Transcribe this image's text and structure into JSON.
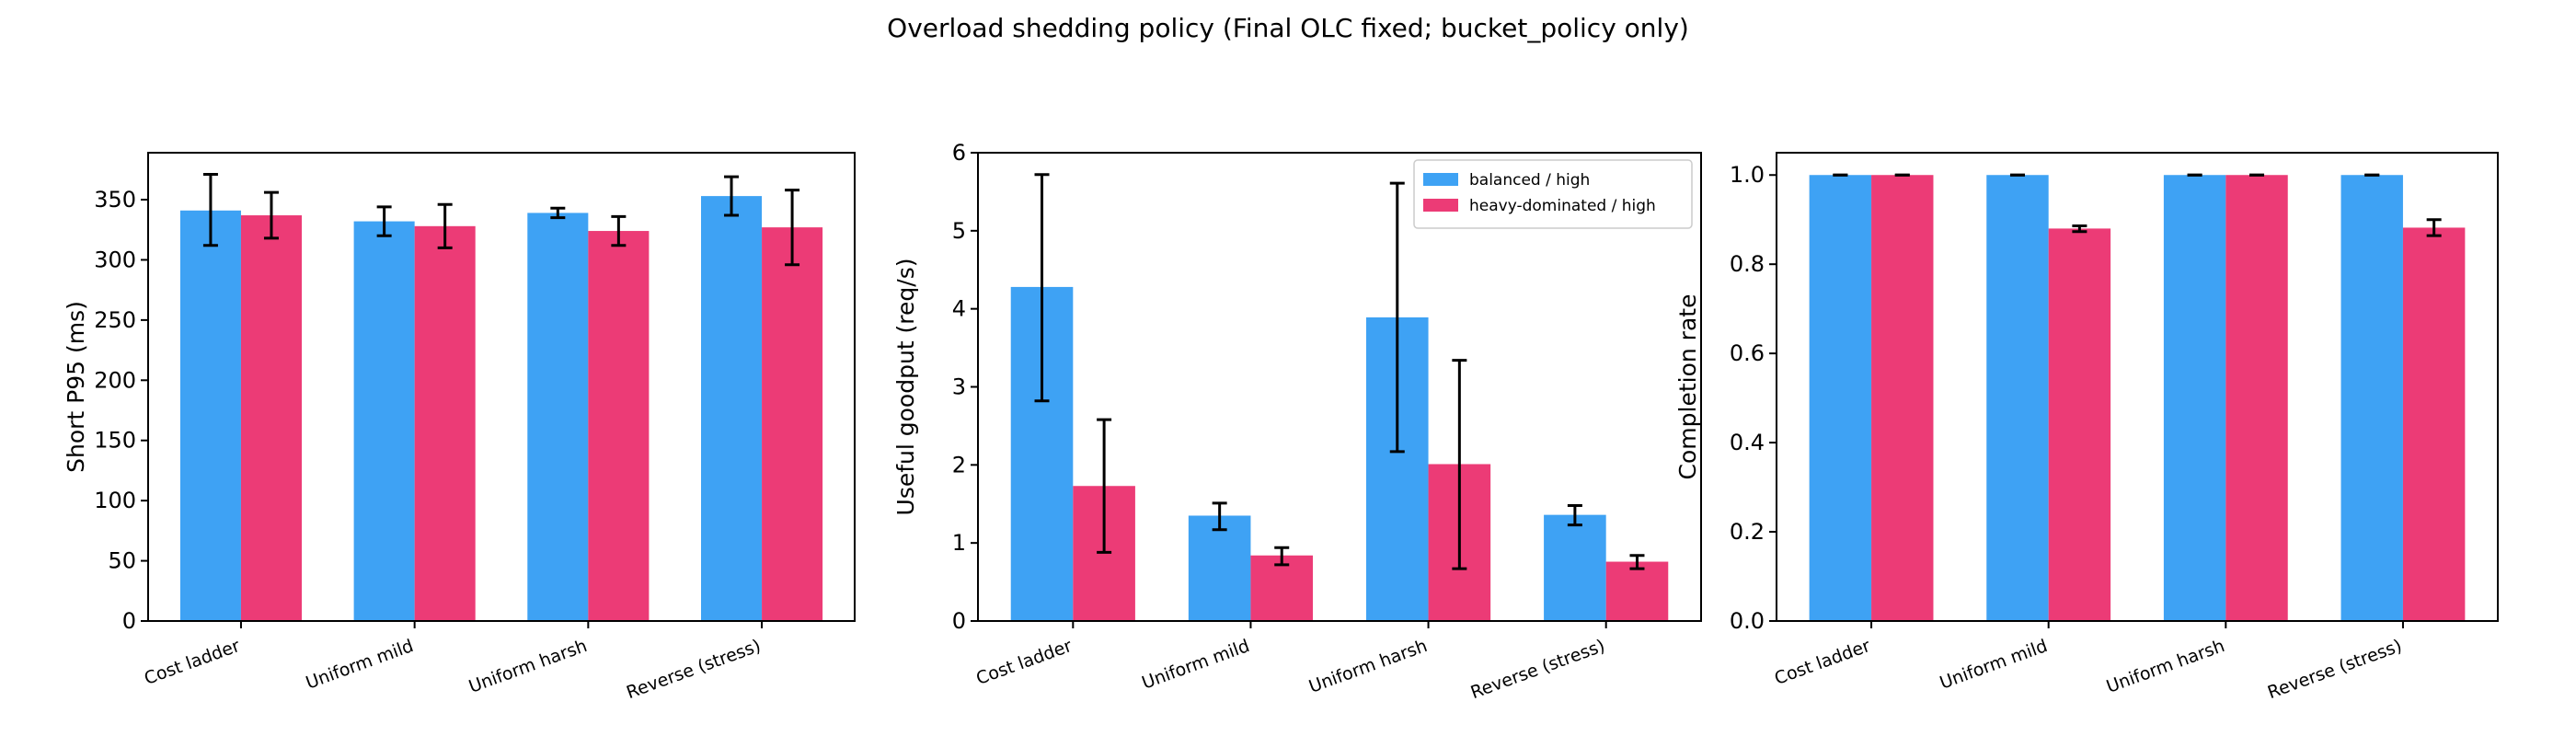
{
  "title": "Overload shedding policy (Final OLC fixed; bucket_policy only)",
  "colors": {
    "balanced / high": "#3ea2f4",
    "heavy-dominated / high": "#ec3b76"
  },
  "legend": {
    "placement": "upper right",
    "entries": [
      "balanced / high",
      "heavy-dominated / high"
    ]
  },
  "chart_data": [
    {
      "type": "bar",
      "categories": [
        "Cost ladder",
        "Uniform mild",
        "Uniform harsh",
        "Reverse (stress)"
      ],
      "xlabel": "",
      "ylabel": "Short P95 (ms)",
      "ylim": [
        0,
        389
      ],
      "yticks": [
        0,
        50,
        100,
        150,
        200,
        250,
        300,
        350
      ],
      "ytick_labels": [
        "0",
        "50",
        "100",
        "150",
        "200",
        "250",
        "300",
        "350"
      ],
      "series": [
        {
          "name": "balanced / high",
          "values": [
            341,
            332,
            339,
            353
          ],
          "err_low": [
            312,
            320,
            335,
            337
          ],
          "err_high": [
            371,
            344,
            343,
            369
          ]
        },
        {
          "name": "heavy-dominated / high",
          "values": [
            337,
            328,
            324,
            327
          ],
          "err_low": [
            318,
            310,
            312,
            296
          ],
          "err_high": [
            356,
            346,
            336,
            358
          ]
        }
      ],
      "legend": false
    },
    {
      "type": "bar",
      "categories": [
        "Cost ladder",
        "Uniform mild",
        "Uniform harsh",
        "Reverse (stress)"
      ],
      "xlabel": "",
      "ylabel": "Useful goodput (req/s)",
      "ylim": [
        0,
        6
      ],
      "yticks": [
        0,
        1,
        2,
        3,
        4,
        5,
        6
      ],
      "ytick_labels": [
        "0",
        "1",
        "2",
        "3",
        "4",
        "5",
        "6"
      ],
      "series": [
        {
          "name": "balanced / high",
          "values": [
            4.28,
            1.35,
            3.89,
            1.36
          ],
          "err_low": [
            2.82,
            1.17,
            2.17,
            1.23
          ],
          "err_high": [
            5.72,
            1.51,
            5.61,
            1.48
          ]
        },
        {
          "name": "heavy-dominated / high",
          "values": [
            1.73,
            0.84,
            2.01,
            0.76
          ],
          "err_low": [
            0.88,
            0.72,
            0.67,
            0.67
          ],
          "err_high": [
            2.58,
            0.94,
            3.34,
            0.84
          ]
        }
      ],
      "legend": true
    },
    {
      "type": "bar",
      "categories": [
        "Cost ladder",
        "Uniform mild",
        "Uniform harsh",
        "Reverse (stress)"
      ],
      "xlabel": "",
      "ylabel": "Completion rate",
      "ylim": [
        0,
        1.05
      ],
      "yticks": [
        0,
        0.2,
        0.4,
        0.6,
        0.8,
        1.0
      ],
      "ytick_labels": [
        "0.0",
        "0.2",
        "0.4",
        "0.6",
        "0.8",
        "1.0"
      ],
      "series": [
        {
          "name": "balanced / high",
          "values": [
            1.0,
            1.0,
            1.0,
            1.0
          ],
          "err_low": [
            1.0,
            1.0,
            1.0,
            1.0
          ],
          "err_high": [
            1.0,
            1.0,
            1.0,
            1.0
          ]
        },
        {
          "name": "heavy-dominated / high",
          "values": [
            1.0,
            0.88,
            1.0,
            0.882
          ],
          "err_low": [
            1.0,
            0.873,
            1.0,
            0.864
          ],
          "err_high": [
            1.0,
            0.886,
            1.0,
            0.9
          ]
        }
      ],
      "legend": false
    }
  ]
}
